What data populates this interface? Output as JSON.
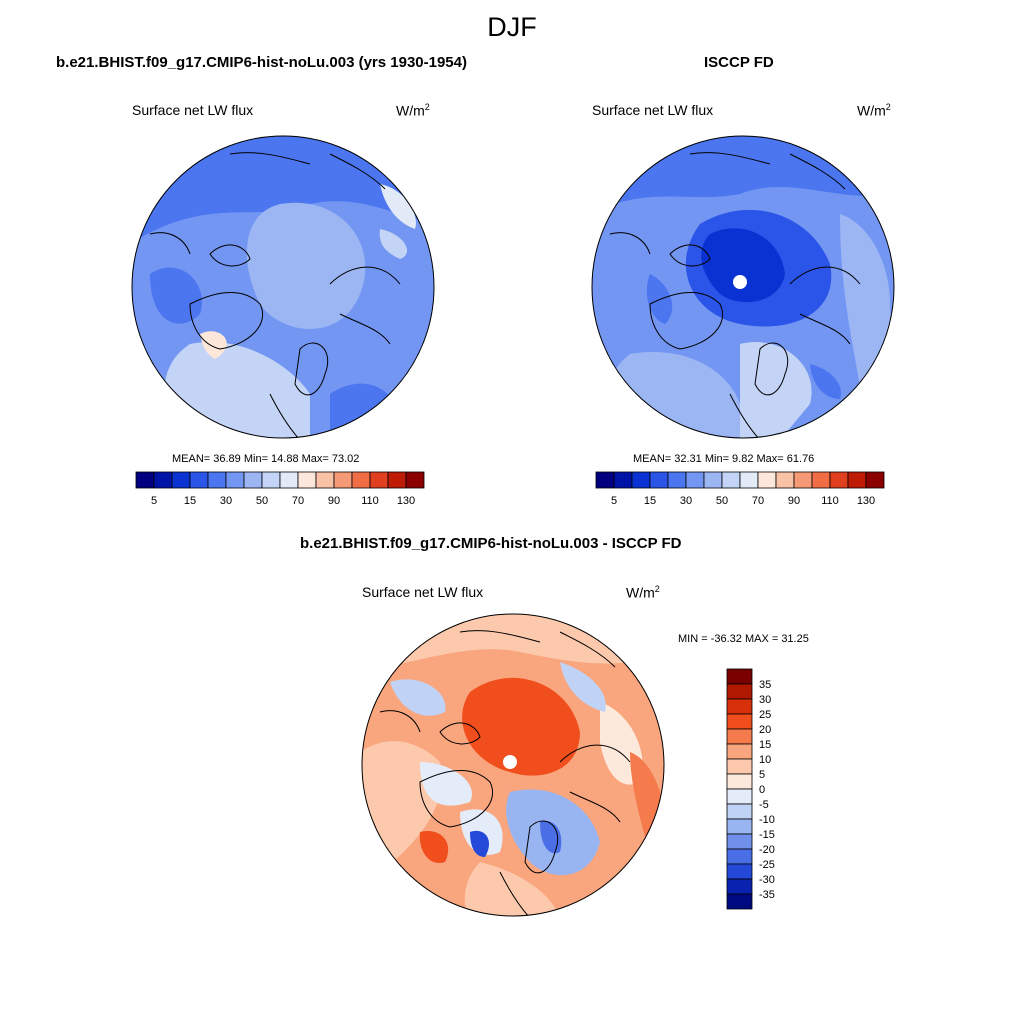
{
  "title": "DJF",
  "panels": [
    {
      "title": "b.e21.BHIST.f09_g17.CMIP6-hist-noLu.003 (yrs 1930-1954)",
      "variable": "Surface net LW flux",
      "units": "W/m",
      "units_sup": "2",
      "stats": "MEAN=  36.89  Min=  14.88  Max=  73.02",
      "mean": 36.89,
      "min": 14.88,
      "max": 73.02
    },
    {
      "title": "ISCCP FD",
      "variable": "Surface net LW flux",
      "units": "W/m",
      "units_sup": "2",
      "stats": "MEAN=  32.31  Min=   9.82  Max=  61.76",
      "mean": 32.31,
      "min": 9.82,
      "max": 61.76
    },
    {
      "title": "b.e21.BHIST.f09_g17.CMIP6-hist-noLu.003 - ISCCP FD",
      "variable": "Surface net LW flux",
      "units": "W/m",
      "units_sup": "2",
      "stats": "MIN = -36.32 MAX =  31.25",
      "min": -36.32,
      "max": 31.25
    }
  ],
  "chart_data": [
    {
      "type": "heatmap",
      "projection": "north polar stereographic",
      "title": "b.e21.BHIST.f09_g17.CMIP6-hist-noLu.003 (yrs 1930-1954)",
      "variable": "Surface net LW flux",
      "units": "W/m2",
      "mean": 36.89,
      "min": 14.88,
      "max": 73.02,
      "colorbar": {
        "orientation": "horizontal",
        "levels": [
          5,
          10,
          15,
          20,
          30,
          40,
          50,
          60,
          70,
          80,
          90,
          100,
          110,
          120,
          130
        ],
        "tick_labels": [
          "5",
          "15",
          "30",
          "50",
          "70",
          "90",
          "110",
          "130"
        ],
        "colors": [
          "#000080",
          "#0013a8",
          "#0a32d2",
          "#2a55e8",
          "#4b76f0",
          "#7396f2",
          "#9cb6f4",
          "#c3d4f6",
          "#e2eaf8",
          "#fde6da",
          "#f9c2a6",
          "#f59a74",
          "#f06d45",
          "#e0401f",
          "#bf1c08",
          "#8b0000"
        ]
      }
    },
    {
      "type": "heatmap",
      "projection": "north polar stereographic",
      "title": "ISCCP FD",
      "variable": "Surface net LW flux",
      "units": "W/m2",
      "mean": 32.31,
      "min": 9.82,
      "max": 61.76,
      "colorbar": {
        "orientation": "horizontal",
        "levels": [
          5,
          10,
          15,
          20,
          30,
          40,
          50,
          60,
          70,
          80,
          90,
          100,
          110,
          120,
          130
        ],
        "tick_labels": [
          "5",
          "15",
          "30",
          "50",
          "70",
          "90",
          "110",
          "130"
        ],
        "colors": [
          "#000080",
          "#0013a8",
          "#0a32d2",
          "#2a55e8",
          "#4b76f0",
          "#7396f2",
          "#9cb6f4",
          "#c3d4f6",
          "#e2eaf8",
          "#fde6da",
          "#f9c2a6",
          "#f59a74",
          "#f06d45",
          "#e0401f",
          "#bf1c08",
          "#8b0000"
        ]
      }
    },
    {
      "type": "heatmap",
      "projection": "north polar stereographic",
      "title": "b.e21.BHIST.f09_g17.CMIP6-hist-noLu.003 - ISCCP FD",
      "variable": "Surface net LW flux",
      "units": "W/m2",
      "min": -36.32,
      "max": 31.25,
      "colorbar": {
        "orientation": "vertical",
        "tick_labels": [
          "35",
          "30",
          "25",
          "20",
          "15",
          "10",
          "5",
          "0",
          "-5",
          "-10",
          "-15",
          "-20",
          "-25",
          "-30",
          "-35"
        ],
        "colors": [
          "#7a0000",
          "#b01800",
          "#d8300a",
          "#f04e1c",
          "#f57a4c",
          "#f9a67e",
          "#fcc9ad",
          "#fde8dc",
          "#e4ecf9",
          "#c0d2f5",
          "#98b4f1",
          "#7090ec",
          "#4a6ee6",
          "#2448d8",
          "#0a22b0",
          "#000a80"
        ]
      }
    }
  ]
}
